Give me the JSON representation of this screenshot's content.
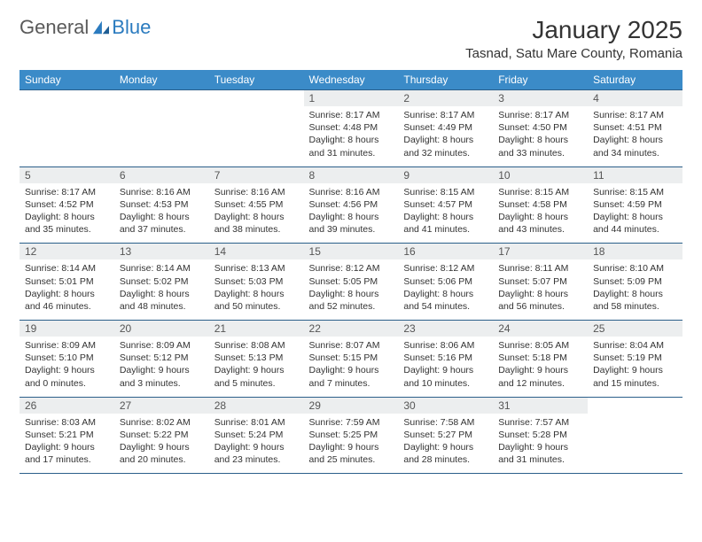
{
  "logo": {
    "text1": "General",
    "text2": "Blue",
    "brand_color": "#2b7bbf",
    "text_color": "#5a5a5a"
  },
  "header": {
    "title": "January 2025",
    "location": "Tasnad, Satu Mare County, Romania"
  },
  "styling": {
    "header_bg": "#3b8bc8",
    "header_fg": "#ffffff",
    "daynum_bg": "#eceeef",
    "border_color": "#2b5f8a",
    "body_bg": "#ffffff",
    "body_fg": "#333333",
    "font_family": "Arial",
    "title_fontsize": 28,
    "location_fontsize": 15,
    "header_cell_fontsize": 12,
    "daynum_fontsize": 12,
    "detail_fontsize": 10.5
  },
  "weekdays": [
    "Sunday",
    "Monday",
    "Tuesday",
    "Wednesday",
    "Thursday",
    "Friday",
    "Saturday"
  ],
  "weeks": [
    [
      null,
      null,
      null,
      {
        "n": "1",
        "sr": "8:17 AM",
        "ss": "4:48 PM",
        "dl": "8 hours and 31 minutes."
      },
      {
        "n": "2",
        "sr": "8:17 AM",
        "ss": "4:49 PM",
        "dl": "8 hours and 32 minutes."
      },
      {
        "n": "3",
        "sr": "8:17 AM",
        "ss": "4:50 PM",
        "dl": "8 hours and 33 minutes."
      },
      {
        "n": "4",
        "sr": "8:17 AM",
        "ss": "4:51 PM",
        "dl": "8 hours and 34 minutes."
      }
    ],
    [
      {
        "n": "5",
        "sr": "8:17 AM",
        "ss": "4:52 PM",
        "dl": "8 hours and 35 minutes."
      },
      {
        "n": "6",
        "sr": "8:16 AM",
        "ss": "4:53 PM",
        "dl": "8 hours and 37 minutes."
      },
      {
        "n": "7",
        "sr": "8:16 AM",
        "ss": "4:55 PM",
        "dl": "8 hours and 38 minutes."
      },
      {
        "n": "8",
        "sr": "8:16 AM",
        "ss": "4:56 PM",
        "dl": "8 hours and 39 minutes."
      },
      {
        "n": "9",
        "sr": "8:15 AM",
        "ss": "4:57 PM",
        "dl": "8 hours and 41 minutes."
      },
      {
        "n": "10",
        "sr": "8:15 AM",
        "ss": "4:58 PM",
        "dl": "8 hours and 43 minutes."
      },
      {
        "n": "11",
        "sr": "8:15 AM",
        "ss": "4:59 PM",
        "dl": "8 hours and 44 minutes."
      }
    ],
    [
      {
        "n": "12",
        "sr": "8:14 AM",
        "ss": "5:01 PM",
        "dl": "8 hours and 46 minutes."
      },
      {
        "n": "13",
        "sr": "8:14 AM",
        "ss": "5:02 PM",
        "dl": "8 hours and 48 minutes."
      },
      {
        "n": "14",
        "sr": "8:13 AM",
        "ss": "5:03 PM",
        "dl": "8 hours and 50 minutes."
      },
      {
        "n": "15",
        "sr": "8:12 AM",
        "ss": "5:05 PM",
        "dl": "8 hours and 52 minutes."
      },
      {
        "n": "16",
        "sr": "8:12 AM",
        "ss": "5:06 PM",
        "dl": "8 hours and 54 minutes."
      },
      {
        "n": "17",
        "sr": "8:11 AM",
        "ss": "5:07 PM",
        "dl": "8 hours and 56 minutes."
      },
      {
        "n": "18",
        "sr": "8:10 AM",
        "ss": "5:09 PM",
        "dl": "8 hours and 58 minutes."
      }
    ],
    [
      {
        "n": "19",
        "sr": "8:09 AM",
        "ss": "5:10 PM",
        "dl": "9 hours and 0 minutes."
      },
      {
        "n": "20",
        "sr": "8:09 AM",
        "ss": "5:12 PM",
        "dl": "9 hours and 3 minutes."
      },
      {
        "n": "21",
        "sr": "8:08 AM",
        "ss": "5:13 PM",
        "dl": "9 hours and 5 minutes."
      },
      {
        "n": "22",
        "sr": "8:07 AM",
        "ss": "5:15 PM",
        "dl": "9 hours and 7 minutes."
      },
      {
        "n": "23",
        "sr": "8:06 AM",
        "ss": "5:16 PM",
        "dl": "9 hours and 10 minutes."
      },
      {
        "n": "24",
        "sr": "8:05 AM",
        "ss": "5:18 PM",
        "dl": "9 hours and 12 minutes."
      },
      {
        "n": "25",
        "sr": "8:04 AM",
        "ss": "5:19 PM",
        "dl": "9 hours and 15 minutes."
      }
    ],
    [
      {
        "n": "26",
        "sr": "8:03 AM",
        "ss": "5:21 PM",
        "dl": "9 hours and 17 minutes."
      },
      {
        "n": "27",
        "sr": "8:02 AM",
        "ss": "5:22 PM",
        "dl": "9 hours and 20 minutes."
      },
      {
        "n": "28",
        "sr": "8:01 AM",
        "ss": "5:24 PM",
        "dl": "9 hours and 23 minutes."
      },
      {
        "n": "29",
        "sr": "7:59 AM",
        "ss": "5:25 PM",
        "dl": "9 hours and 25 minutes."
      },
      {
        "n": "30",
        "sr": "7:58 AM",
        "ss": "5:27 PM",
        "dl": "9 hours and 28 minutes."
      },
      {
        "n": "31",
        "sr": "7:57 AM",
        "ss": "5:28 PM",
        "dl": "9 hours and 31 minutes."
      },
      null
    ]
  ],
  "labels": {
    "sunrise": "Sunrise:",
    "sunset": "Sunset:",
    "daylight": "Daylight:"
  }
}
